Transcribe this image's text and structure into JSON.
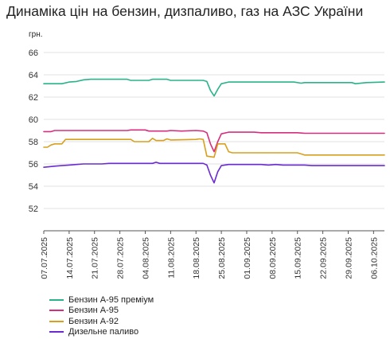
{
  "chart_data": {
    "type": "line",
    "title": "Динаміка цін на бензин, дизпаливо, газ на АЗС України",
    "ylabel": "грн.",
    "xlabel": "",
    "ylim": [
      50,
      67
    ],
    "yticks": [
      52,
      54,
      56,
      58,
      60,
      62,
      64,
      66
    ],
    "x_start": "2025-07-07",
    "x_end": "2025-10-09",
    "x_tick_labels": [
      "07.07.2025",
      "14.07.2025",
      "21.07.2025",
      "28.07.2025",
      "04.08.2025",
      "11.08.2025",
      "18.08.2025",
      "25.08.2025",
      "01.09.2025",
      "08.09.2025",
      "15.09.2025",
      "22.09.2025",
      "29.09.2025",
      "06.10.2025"
    ],
    "grid": "horizontal",
    "legend_position": "bottom-left",
    "series": [
      {
        "name": "Бензин А-95 преміум",
        "color": "#2ab38a",
        "points": [
          [
            "2025-07-07",
            63.2
          ],
          [
            "2025-07-10",
            63.2
          ],
          [
            "2025-07-12",
            63.2
          ],
          [
            "2025-07-14",
            63.35
          ],
          [
            "2025-07-16",
            63.4
          ],
          [
            "2025-07-18",
            63.55
          ],
          [
            "2025-07-20",
            63.6
          ],
          [
            "2025-07-30",
            63.6
          ],
          [
            "2025-07-31",
            63.5
          ],
          [
            "2025-08-05",
            63.5
          ],
          [
            "2025-08-06",
            63.6
          ],
          [
            "2025-08-10",
            63.6
          ],
          [
            "2025-08-11",
            63.5
          ],
          [
            "2025-08-20",
            63.5
          ],
          [
            "2025-08-21",
            63.4
          ],
          [
            "2025-08-22",
            62.6
          ],
          [
            "2025-08-23",
            62.1
          ],
          [
            "2025-08-24",
            62.7
          ],
          [
            "2025-08-25",
            63.2
          ],
          [
            "2025-08-27",
            63.35
          ],
          [
            "2025-09-14",
            63.35
          ],
          [
            "2025-09-16",
            63.25
          ],
          [
            "2025-09-17",
            63.3
          ],
          [
            "2025-09-30",
            63.3
          ],
          [
            "2025-10-01",
            63.2
          ],
          [
            "2025-10-04",
            63.3
          ],
          [
            "2025-10-09",
            63.35
          ]
        ]
      },
      {
        "name": "Бензин А-95",
        "color": "#d62e7e",
        "points": [
          [
            "2025-07-07",
            58.9
          ],
          [
            "2025-07-09",
            58.9
          ],
          [
            "2025-07-10",
            59.0
          ],
          [
            "2025-07-30",
            59.0
          ],
          [
            "2025-07-31",
            59.05
          ],
          [
            "2025-08-04",
            59.05
          ],
          [
            "2025-08-05",
            58.95
          ],
          [
            "2025-08-10",
            58.95
          ],
          [
            "2025-08-11",
            59.0
          ],
          [
            "2025-08-14",
            58.95
          ],
          [
            "2025-08-18",
            59.0
          ],
          [
            "2025-08-20",
            58.95
          ],
          [
            "2025-08-21",
            58.8
          ],
          [
            "2025-08-22",
            57.8
          ],
          [
            "2025-08-23",
            57.1
          ],
          [
            "2025-08-24",
            58.0
          ],
          [
            "2025-08-25",
            58.7
          ],
          [
            "2025-08-27",
            58.85
          ],
          [
            "2025-09-03",
            58.85
          ],
          [
            "2025-09-05",
            58.8
          ],
          [
            "2025-09-15",
            58.8
          ],
          [
            "2025-09-17",
            58.75
          ],
          [
            "2025-10-09",
            58.75
          ]
        ]
      },
      {
        "name": "Бензин А-92",
        "color": "#d7a01e",
        "points": [
          [
            "2025-07-07",
            57.5
          ],
          [
            "2025-07-08",
            57.5
          ],
          [
            "2025-07-09",
            57.7
          ],
          [
            "2025-07-10",
            57.8
          ],
          [
            "2025-07-12",
            57.8
          ],
          [
            "2025-07-13",
            58.2
          ],
          [
            "2025-07-31",
            58.2
          ],
          [
            "2025-08-01",
            58.0
          ],
          [
            "2025-08-05",
            58.0
          ],
          [
            "2025-08-06",
            58.3
          ],
          [
            "2025-08-07",
            58.1
          ],
          [
            "2025-08-09",
            58.1
          ],
          [
            "2025-08-10",
            58.25
          ],
          [
            "2025-08-11",
            58.15
          ],
          [
            "2025-08-18",
            58.2
          ],
          [
            "2025-08-19",
            58.25
          ],
          [
            "2025-08-20",
            58.2
          ],
          [
            "2025-08-21",
            56.7
          ],
          [
            "2025-08-23",
            56.6
          ],
          [
            "2025-08-24",
            57.8
          ],
          [
            "2025-08-26",
            57.8
          ],
          [
            "2025-08-27",
            57.1
          ],
          [
            "2025-08-28",
            57.0
          ],
          [
            "2025-09-15",
            57.0
          ],
          [
            "2025-09-17",
            56.8
          ],
          [
            "2025-10-09",
            56.8
          ]
        ]
      },
      {
        "name": "Дизельне паливо",
        "color": "#6a2bd1",
        "points": [
          [
            "2025-07-07",
            55.7
          ],
          [
            "2025-07-10",
            55.8
          ],
          [
            "2025-07-12",
            55.85
          ],
          [
            "2025-07-14",
            55.9
          ],
          [
            "2025-07-16",
            55.95
          ],
          [
            "2025-07-18",
            56.0
          ],
          [
            "2025-07-23",
            56.0
          ],
          [
            "2025-07-25",
            56.05
          ],
          [
            "2025-08-06",
            56.05
          ],
          [
            "2025-08-07",
            56.15
          ],
          [
            "2025-08-08",
            56.05
          ],
          [
            "2025-08-20",
            56.05
          ],
          [
            "2025-08-21",
            55.9
          ],
          [
            "2025-08-22",
            55.0
          ],
          [
            "2025-08-23",
            54.3
          ],
          [
            "2025-08-24",
            55.3
          ],
          [
            "2025-08-25",
            55.85
          ],
          [
            "2025-08-27",
            55.95
          ],
          [
            "2025-09-05",
            55.95
          ],
          [
            "2025-09-07",
            55.9
          ],
          [
            "2025-09-09",
            55.95
          ],
          [
            "2025-09-11",
            55.9
          ],
          [
            "2025-09-17",
            55.9
          ],
          [
            "2025-09-19",
            55.85
          ],
          [
            "2025-10-09",
            55.85
          ]
        ]
      }
    ]
  }
}
